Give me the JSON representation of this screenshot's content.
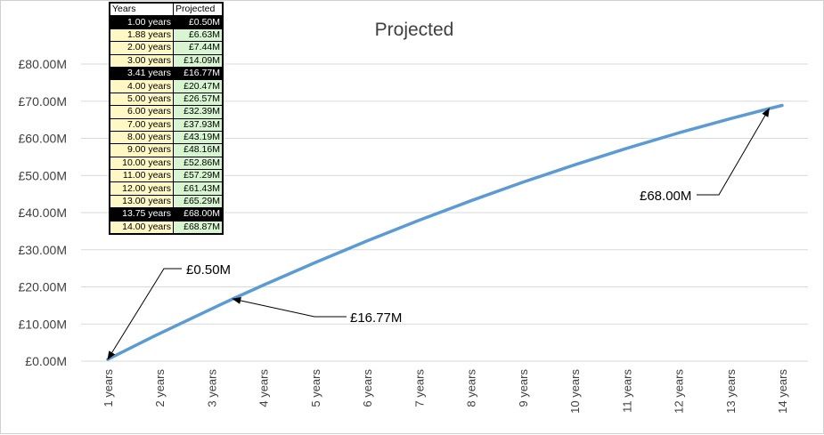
{
  "chart_data": {
    "type": "line",
    "title": "Projected",
    "xlabel": "",
    "ylabel": "",
    "categories": [
      "1 years",
      "2 years",
      "3 years",
      "4 years",
      "5 years",
      "6 years",
      "7 years",
      "8 years",
      "9 years",
      "10 years",
      "11 years",
      "12 years",
      "13 years",
      "14 years"
    ],
    "y_tick_labels": [
      "£0.00M",
      "£10.00M",
      "£20.00M",
      "£30.00M",
      "£40.00M",
      "£50.00M",
      "£60.00M",
      "£70.00M",
      "£80.00M"
    ],
    "ylim": [
      0,
      80
    ],
    "grid": true,
    "series": [
      {
        "name": "",
        "color": "#5b9bd5",
        "x": [
          1,
          1.88,
          2,
          3,
          3.41,
          4,
          5,
          6,
          7,
          8,
          9,
          10,
          11,
          12,
          13,
          13.75,
          14
        ],
        "values": [
          0.5,
          6.63,
          7.44,
          14.09,
          16.77,
          20.47,
          26.57,
          32.39,
          37.93,
          43.19,
          48.16,
          52.86,
          57.29,
          61.43,
          65.29,
          68.0,
          68.87
        ]
      }
    ],
    "annotations": [
      {
        "label": "£0.50M",
        "x": 1,
        "y": 0.5
      },
      {
        "label": "£16.77M",
        "x": 3.41,
        "y": 16.77
      },
      {
        "label": "£68.00M",
        "x": 13.75,
        "y": 68.0
      }
    ]
  },
  "table": {
    "headers": [
      "Years",
      "Projected"
    ],
    "rows": [
      {
        "years": "1.00 years",
        "projected": "£0.50M",
        "highlight": true
      },
      {
        "years": "1.88 years",
        "projected": "£6.63M",
        "highlight": false
      },
      {
        "years": "2.00 years",
        "projected": "£7.44M",
        "highlight": false
      },
      {
        "years": "3.00 years",
        "projected": "£14.09M",
        "highlight": false
      },
      {
        "years": "3.41 years",
        "projected": "£16.77M",
        "highlight": true
      },
      {
        "years": "4.00 years",
        "projected": "£20.47M",
        "highlight": false
      },
      {
        "years": "5.00 years",
        "projected": "£26.57M",
        "highlight": false
      },
      {
        "years": "6.00 years",
        "projected": "£32.39M",
        "highlight": false
      },
      {
        "years": "7.00 years",
        "projected": "£37.93M",
        "highlight": false
      },
      {
        "years": "8.00 years",
        "projected": "£43.19M",
        "highlight": false
      },
      {
        "years": "9.00 years",
        "projected": "£48.16M",
        "highlight": false
      },
      {
        "years": "10.00 years",
        "projected": "£52.86M",
        "highlight": false
      },
      {
        "years": "11.00 years",
        "projected": "£57.29M",
        "highlight": false
      },
      {
        "years": "12.00 years",
        "projected": "£61.43M",
        "highlight": false
      },
      {
        "years": "13.00 years",
        "projected": "£65.29M",
        "highlight": false
      },
      {
        "years": "13.75 years",
        "projected": "£68.00M",
        "highlight": true
      },
      {
        "years": "14.00 years",
        "projected": "£68.87M",
        "highlight": false
      }
    ]
  }
}
